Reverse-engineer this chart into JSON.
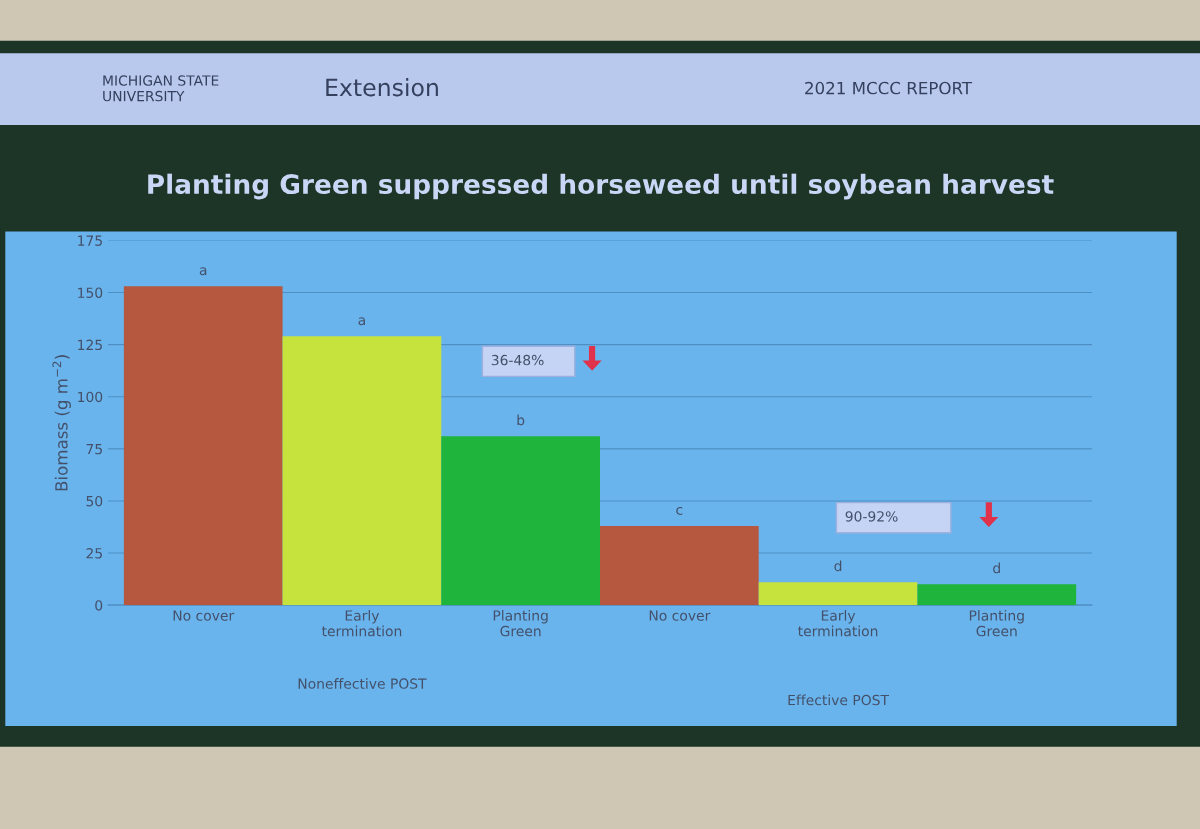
{
  "chart_data": {
    "type": "bar",
    "title": "Planting Green suppressed horseweed until soybean harvest",
    "ylabel": "Biomass (g m$^{−2}$)",
    "categories": [
      "No cover",
      "Early\ntermination",
      "Planting\nGreen",
      "No cover",
      "Early\ntermination",
      "Planting\nGreen"
    ],
    "values": [
      153,
      129,
      81,
      38,
      11,
      10
    ],
    "colors": [
      "#b5583f",
      "#c6e23c",
      "#1fb53c",
      "#b5583f",
      "#c6e23c",
      "#1fb53c"
    ],
    "value_labels": [
      "a",
      "a",
      "b",
      "c",
      "d",
      "d"
    ],
    "ylim": [
      0,
      175
    ],
    "yticks": [
      0,
      25,
      50,
      75,
      100,
      125,
      150,
      175
    ],
    "grid": "y",
    "annotations": [
      "MICHIGAN STATE\nUNIVERSITY",
      "Extension",
      "2021 MCCC REPORT",
      "36-48%",
      "90-92%",
      "Noneffective POST",
      "Effective POST"
    ]
  }
}
